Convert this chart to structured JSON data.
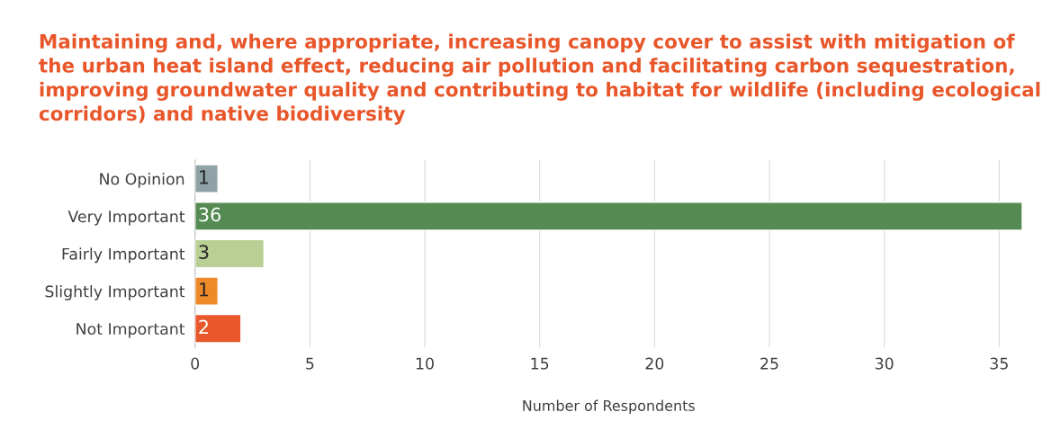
{
  "chart_data": {
    "type": "bar",
    "orientation": "horizontal",
    "title": "Maintaining and, where appropriate, increasing canopy cover to assist with mitigation of the urban heat island effect, reducing air pollution and facilitating carbon sequestration, improving groundwater quality and contributing to habitat for wildlife (including ecological corridors) and native biodiversity",
    "xlabel": "Number of Respondents",
    "categories": [
      "No Opinion",
      "Very Important",
      "Fairly Important",
      "Slightly Important",
      "Not Important"
    ],
    "values": [
      1,
      36,
      3,
      1,
      2
    ],
    "colors": [
      "#8fa3a6",
      "#558b52",
      "#b9cf94",
      "#ee8a2a",
      "#e8582c"
    ],
    "xlim": [
      0,
      36
    ],
    "xticks": [
      0,
      5,
      10,
      15,
      20,
      25,
      30,
      35
    ],
    "grid": "x",
    "data_labels": true
  }
}
